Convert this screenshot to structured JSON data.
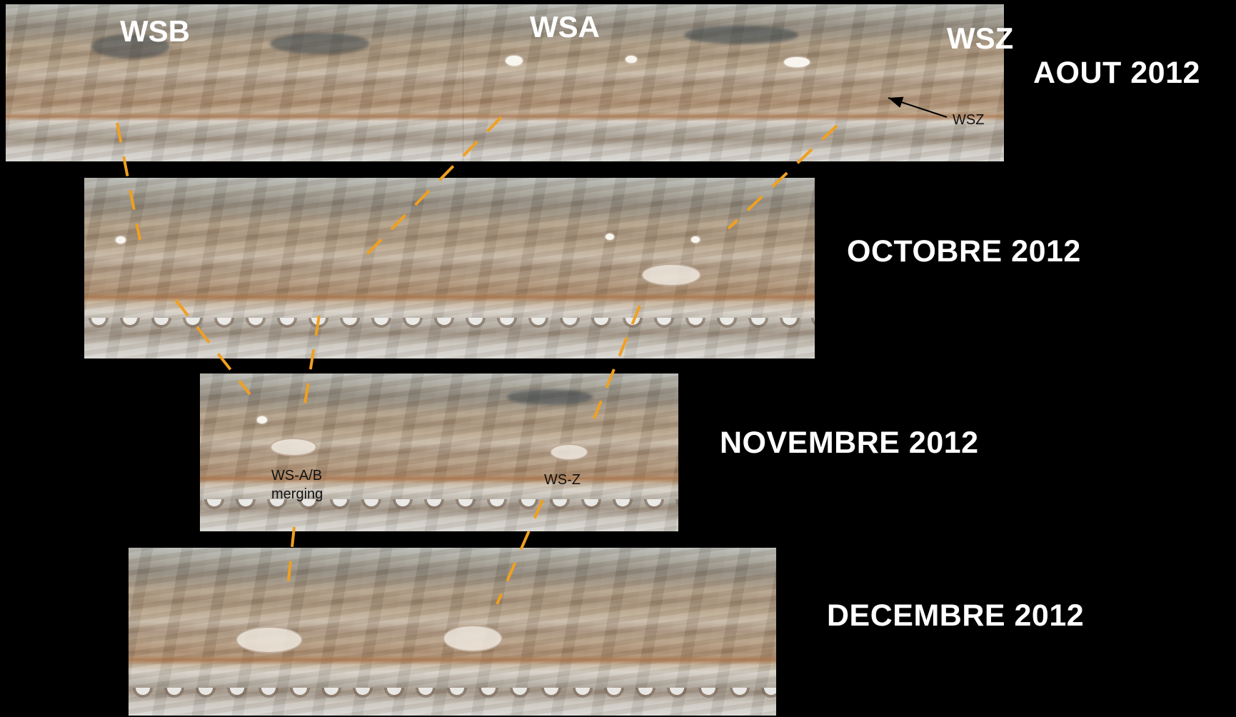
{
  "labels": {
    "wsb": "WSB",
    "wsa": "WSA",
    "wsz": "WSZ",
    "wsz_small": "WSZ",
    "merging_line1": "WS-A/B",
    "merging_line2": "merging",
    "wsz_nov": "WS-Z"
  },
  "dates": {
    "aug": "AOUT 2012",
    "oct": "OCTOBRE 2012",
    "nov": "NOVEMBRE 2012",
    "dec": "DECEMBRE 2012"
  },
  "colors": {
    "background": "#000000",
    "track_line": "#f0a020",
    "label_text": "#ffffff",
    "annotation_text": "#111111"
  }
}
